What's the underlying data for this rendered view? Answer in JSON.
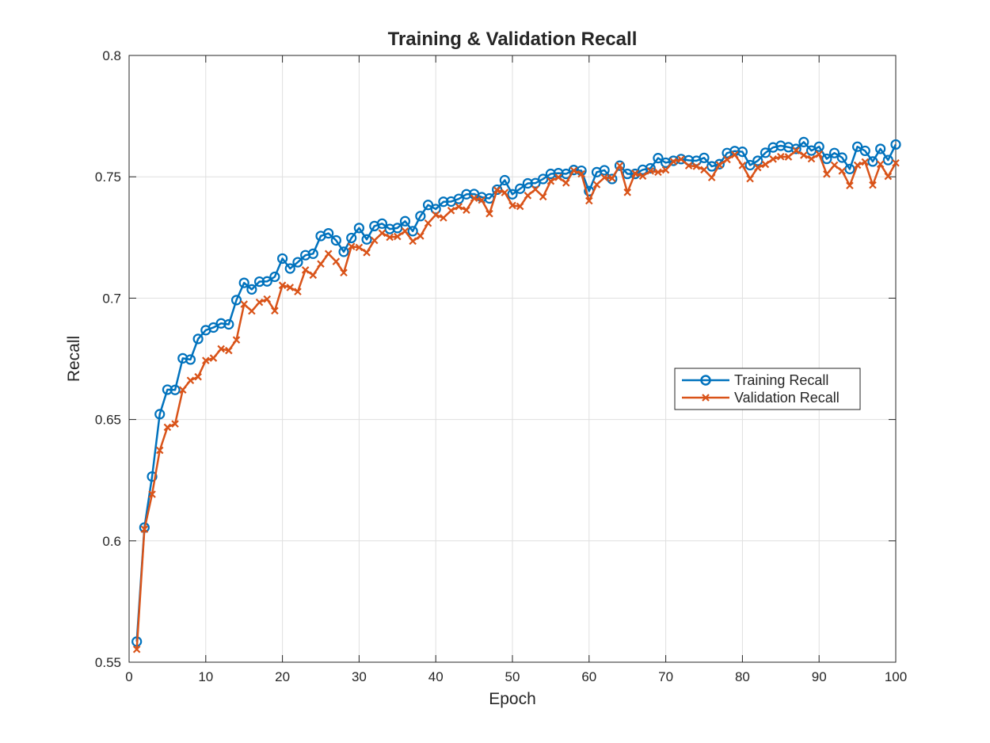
{
  "chart_data": {
    "type": "line",
    "title": "Training & Validation Recall",
    "xlabel": "Epoch",
    "ylabel": "Recall",
    "xlim": [
      0,
      100
    ],
    "ylim": [
      0.55,
      0.8
    ],
    "xticks": [
      "0",
      "10",
      "20",
      "30",
      "40",
      "50",
      "60",
      "70",
      "80",
      "90",
      "100"
    ],
    "yticks": [
      "0.55",
      "0.6",
      "0.65",
      "0.7",
      "0.75",
      "0.8"
    ],
    "grid": true,
    "legend_position": "center-right",
    "x": [
      1,
      2,
      3,
      4,
      5,
      6,
      7,
      8,
      9,
      10,
      11,
      12,
      13,
      14,
      15,
      16,
      17,
      18,
      19,
      20,
      21,
      22,
      23,
      24,
      25,
      26,
      27,
      28,
      29,
      30,
      31,
      32,
      33,
      34,
      35,
      36,
      37,
      38,
      39,
      40,
      41,
      42,
      43,
      44,
      45,
      46,
      47,
      48,
      49,
      50,
      51,
      52,
      53,
      54,
      55,
      56,
      57,
      58,
      59,
      60,
      61,
      62,
      63,
      64,
      65,
      66,
      67,
      68,
      69,
      70,
      71,
      72,
      73,
      74,
      75,
      76,
      77,
      78,
      79,
      80,
      81,
      82,
      83,
      84,
      85,
      86,
      87,
      88,
      89,
      90,
      91,
      92,
      93,
      94,
      95,
      96,
      97,
      98,
      99,
      100
    ],
    "series": [
      {
        "name": "Training Recall",
        "color": "#0072BD",
        "marker": "circle",
        "values": [
          0.5585,
          0.6055,
          0.6265,
          0.6522,
          0.6623,
          0.6622,
          0.6752,
          0.6747,
          0.6832,
          0.6868,
          0.6879,
          0.6896,
          0.6892,
          0.6992,
          0.7063,
          0.7036,
          0.7068,
          0.7069,
          0.7088,
          0.7163,
          0.7122,
          0.7148,
          0.7177,
          0.7183,
          0.7256,
          0.7267,
          0.7238,
          0.7191,
          0.7248,
          0.7289,
          0.7242,
          0.7297,
          0.7307,
          0.7285,
          0.7289,
          0.7317,
          0.7276,
          0.7338,
          0.7384,
          0.7367,
          0.7397,
          0.7398,
          0.7409,
          0.7428,
          0.7429,
          0.7416,
          0.7411,
          0.7447,
          0.7486,
          0.7428,
          0.7451,
          0.7473,
          0.7474,
          0.7491,
          0.7512,
          0.7515,
          0.7512,
          0.7528,
          0.7525,
          0.7441,
          0.7519,
          0.7527,
          0.7491,
          0.7546,
          0.7512,
          0.7512,
          0.7529,
          0.7535,
          0.7577,
          0.7558,
          0.7566,
          0.7573,
          0.7568,
          0.7566,
          0.7578,
          0.7543,
          0.7552,
          0.7598,
          0.7606,
          0.7603,
          0.7548,
          0.7566,
          0.7599,
          0.7621,
          0.7628,
          0.7622,
          0.7615,
          0.7643,
          0.7608,
          0.7624,
          0.7574,
          0.7598,
          0.7579,
          0.7532,
          0.7624,
          0.7607,
          0.7563,
          0.7615,
          0.7569,
          0.7633
        ]
      },
      {
        "name": "Validation Recall",
        "color": "#D95319",
        "marker": "cross",
        "values": [
          0.5553,
          0.6048,
          0.6192,
          0.6373,
          0.6468,
          0.6482,
          0.6622,
          0.6661,
          0.6676,
          0.6743,
          0.6753,
          0.6791,
          0.6784,
          0.6828,
          0.6975,
          0.6947,
          0.6983,
          0.6996,
          0.6948,
          0.7053,
          0.7044,
          0.7027,
          0.7116,
          0.7095,
          0.7141,
          0.7183,
          0.7151,
          0.7105,
          0.7213,
          0.7209,
          0.7188,
          0.7238,
          0.7268,
          0.7251,
          0.7254,
          0.7276,
          0.7235,
          0.7256,
          0.7309,
          0.7343,
          0.7331,
          0.7361,
          0.7377,
          0.7363,
          0.7412,
          0.7404,
          0.7348,
          0.7445,
          0.7435,
          0.7382,
          0.7378,
          0.7423,
          0.7448,
          0.7418,
          0.7482,
          0.7498,
          0.7475,
          0.7526,
          0.7512,
          0.7401,
          0.7468,
          0.7497,
          0.7494,
          0.7546,
          0.7436,
          0.7514,
          0.7503,
          0.7524,
          0.7519,
          0.7528,
          0.7563,
          0.7572,
          0.7546,
          0.7543,
          0.7529,
          0.7497,
          0.7549,
          0.7571,
          0.7591,
          0.7547,
          0.7492,
          0.7538,
          0.7551,
          0.7573,
          0.7583,
          0.7582,
          0.7608,
          0.7589,
          0.7574,
          0.7593,
          0.7511,
          0.7548,
          0.7524,
          0.7464,
          0.7548,
          0.7561,
          0.7466,
          0.7552,
          0.7502,
          0.7557
        ]
      }
    ]
  }
}
